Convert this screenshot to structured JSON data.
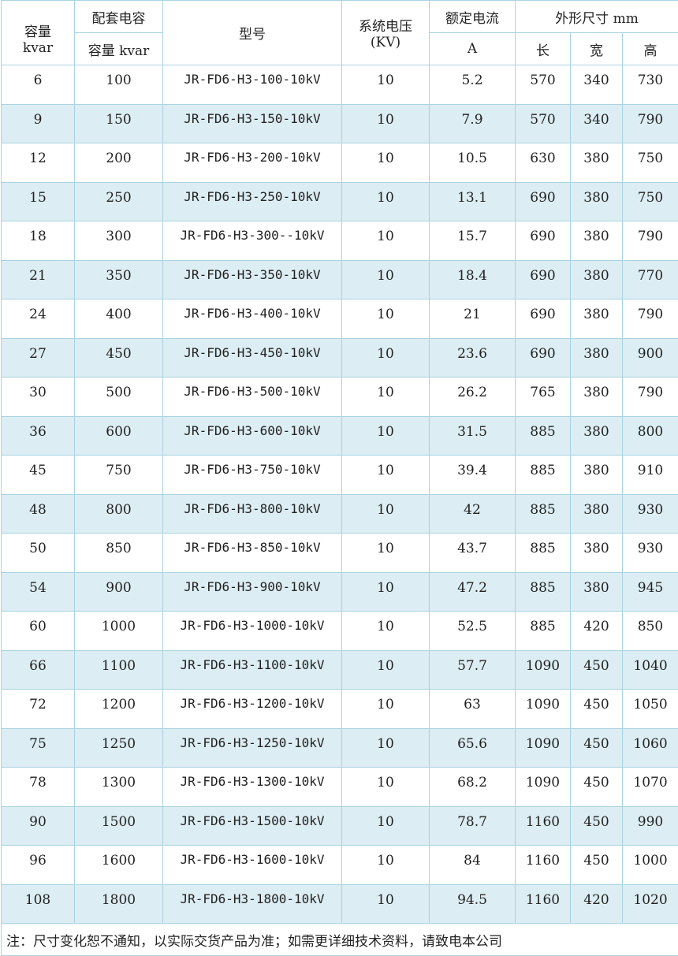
{
  "header": {
    "capacity": "容量",
    "capacity_unit": "kvar",
    "matching_cap": "配套电容",
    "matching_cap_unit": "容量 kvar",
    "model": "型号",
    "voltage": "系统电压",
    "voltage_unit": "(KV)",
    "current": "额定电流",
    "current_unit": "A",
    "dimensions": "外形尺寸 mm",
    "length": "长",
    "width": "宽",
    "height": "高"
  },
  "rows": [
    [
      "6",
      "100",
      "JR-FD6-H3-100-10kV",
      "10",
      "5.2",
      "570",
      "340",
      "730"
    ],
    [
      "9",
      "150",
      "JR-FD6-H3-150-10kV",
      "10",
      "7.9",
      "570",
      "340",
      "790"
    ],
    [
      "12",
      "200",
      "JR-FD6-H3-200-10kV",
      "10",
      "10.5",
      "630",
      "380",
      "750"
    ],
    [
      "15",
      "250",
      "JR-FD6-H3-250-10kV",
      "10",
      "13.1",
      "690",
      "380",
      "750"
    ],
    [
      "18",
      "300",
      "JR-FD6-H3-300--10kV",
      "10",
      "15.7",
      "690",
      "380",
      "790"
    ],
    [
      "21",
      "350",
      "JR-FD6-H3-350-10kV",
      "10",
      "18.4",
      "690",
      "380",
      "770"
    ],
    [
      "24",
      "400",
      "JR-FD6-H3-400-10kV",
      "10",
      "21",
      "690",
      "380",
      "790"
    ],
    [
      "27",
      "450",
      "JR-FD6-H3-450-10kV",
      "10",
      "23.6",
      "690",
      "380",
      "900"
    ],
    [
      "30",
      "500",
      "JR-FD6-H3-500-10kV",
      "10",
      "26.2",
      "765",
      "380",
      "790"
    ],
    [
      "36",
      "600",
      "JR-FD6-H3-600-10kV",
      "10",
      "31.5",
      "885",
      "380",
      "800"
    ],
    [
      "45",
      "750",
      "JR-FD6-H3-750-10kV",
      "10",
      "39.4",
      "885",
      "380",
      "910"
    ],
    [
      "48",
      "800",
      "JR-FD6-H3-800-10kV",
      "10",
      "42",
      "885",
      "380",
      "930"
    ],
    [
      "50",
      "850",
      "JR-FD6-H3-850-10kV",
      "10",
      "43.7",
      "885",
      "380",
      "930"
    ],
    [
      "54",
      "900",
      "JR-FD6-H3-900-10kV",
      "10",
      "47.2",
      "885",
      "380",
      "945"
    ],
    [
      "60",
      "1000",
      "JR-FD6-H3-1000-10kV",
      "10",
      "52.5",
      "885",
      "420",
      "850"
    ],
    [
      "66",
      "1100",
      "JR-FD6-H3-1100-10kV",
      "10",
      "57.7",
      "1090",
      "450",
      "1040"
    ],
    [
      "72",
      "1200",
      "JR-FD6-H3-1200-10kV",
      "10",
      "63",
      "1090",
      "450",
      "1050"
    ],
    [
      "75",
      "1250",
      "JR-FD6-H3-1250-10kV",
      "10",
      "65.6",
      "1090",
      "450",
      "1060"
    ],
    [
      "78",
      "1300",
      "JR-FD6-H3-1300-10kV",
      "10",
      "68.2",
      "1090",
      "450",
      "1070"
    ],
    [
      "90",
      "1500",
      "JR-FD6-H3-1500-10kV",
      "10",
      "78.7",
      "1160",
      "450",
      "990"
    ],
    [
      "96",
      "1600",
      "JR-FD6-H3-1600-10kV",
      "10",
      "84",
      "1160",
      "450",
      "1000"
    ],
    [
      "108",
      "1800",
      "JR-FD6-H3-1800-10kV",
      "10",
      "94.5",
      "1160",
      "420",
      "1020"
    ]
  ],
  "note": "注：尺寸变化恕不通知，以实际交货产品为准；如需更详细技术资料，请致电本公司",
  "colors": {
    "border": "#a9d3e1",
    "alt_row": "#dcedf3"
  }
}
